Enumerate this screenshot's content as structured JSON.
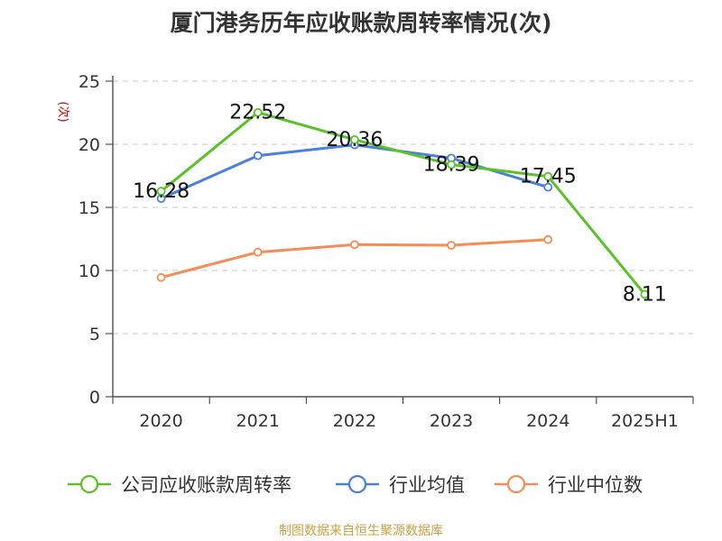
{
  "chart_data": {
    "type": "line",
    "title": "厦门港务历年应收账款周转率情况(次)",
    "ylabel": "(次)",
    "ylim": [
      0,
      25
    ],
    "yticks": [
      0,
      5,
      10,
      15,
      20,
      25
    ],
    "grid": true,
    "legend_position": "bottom",
    "categories": [
      "2020",
      "2021",
      "2022",
      "2023",
      "2024",
      "2025H1"
    ],
    "series": [
      {
        "name": "公司应收账款周转率",
        "color": "#5ac12a",
        "values": [
          16.28,
          22.52,
          20.36,
          18.39,
          17.45,
          8.11
        ],
        "show_labels": true
      },
      {
        "name": "行业均值",
        "color": "#4b7fdc",
        "values": [
          15.7,
          19.1,
          19.95,
          18.9,
          16.6,
          null
        ],
        "show_labels": false
      },
      {
        "name": "行业中位数",
        "color": "#f58b56",
        "values": [
          9.45,
          11.45,
          12.05,
          12.0,
          12.45,
          null
        ],
        "show_labels": false
      }
    ]
  },
  "source": "制图数据来自恒生聚源数据库"
}
